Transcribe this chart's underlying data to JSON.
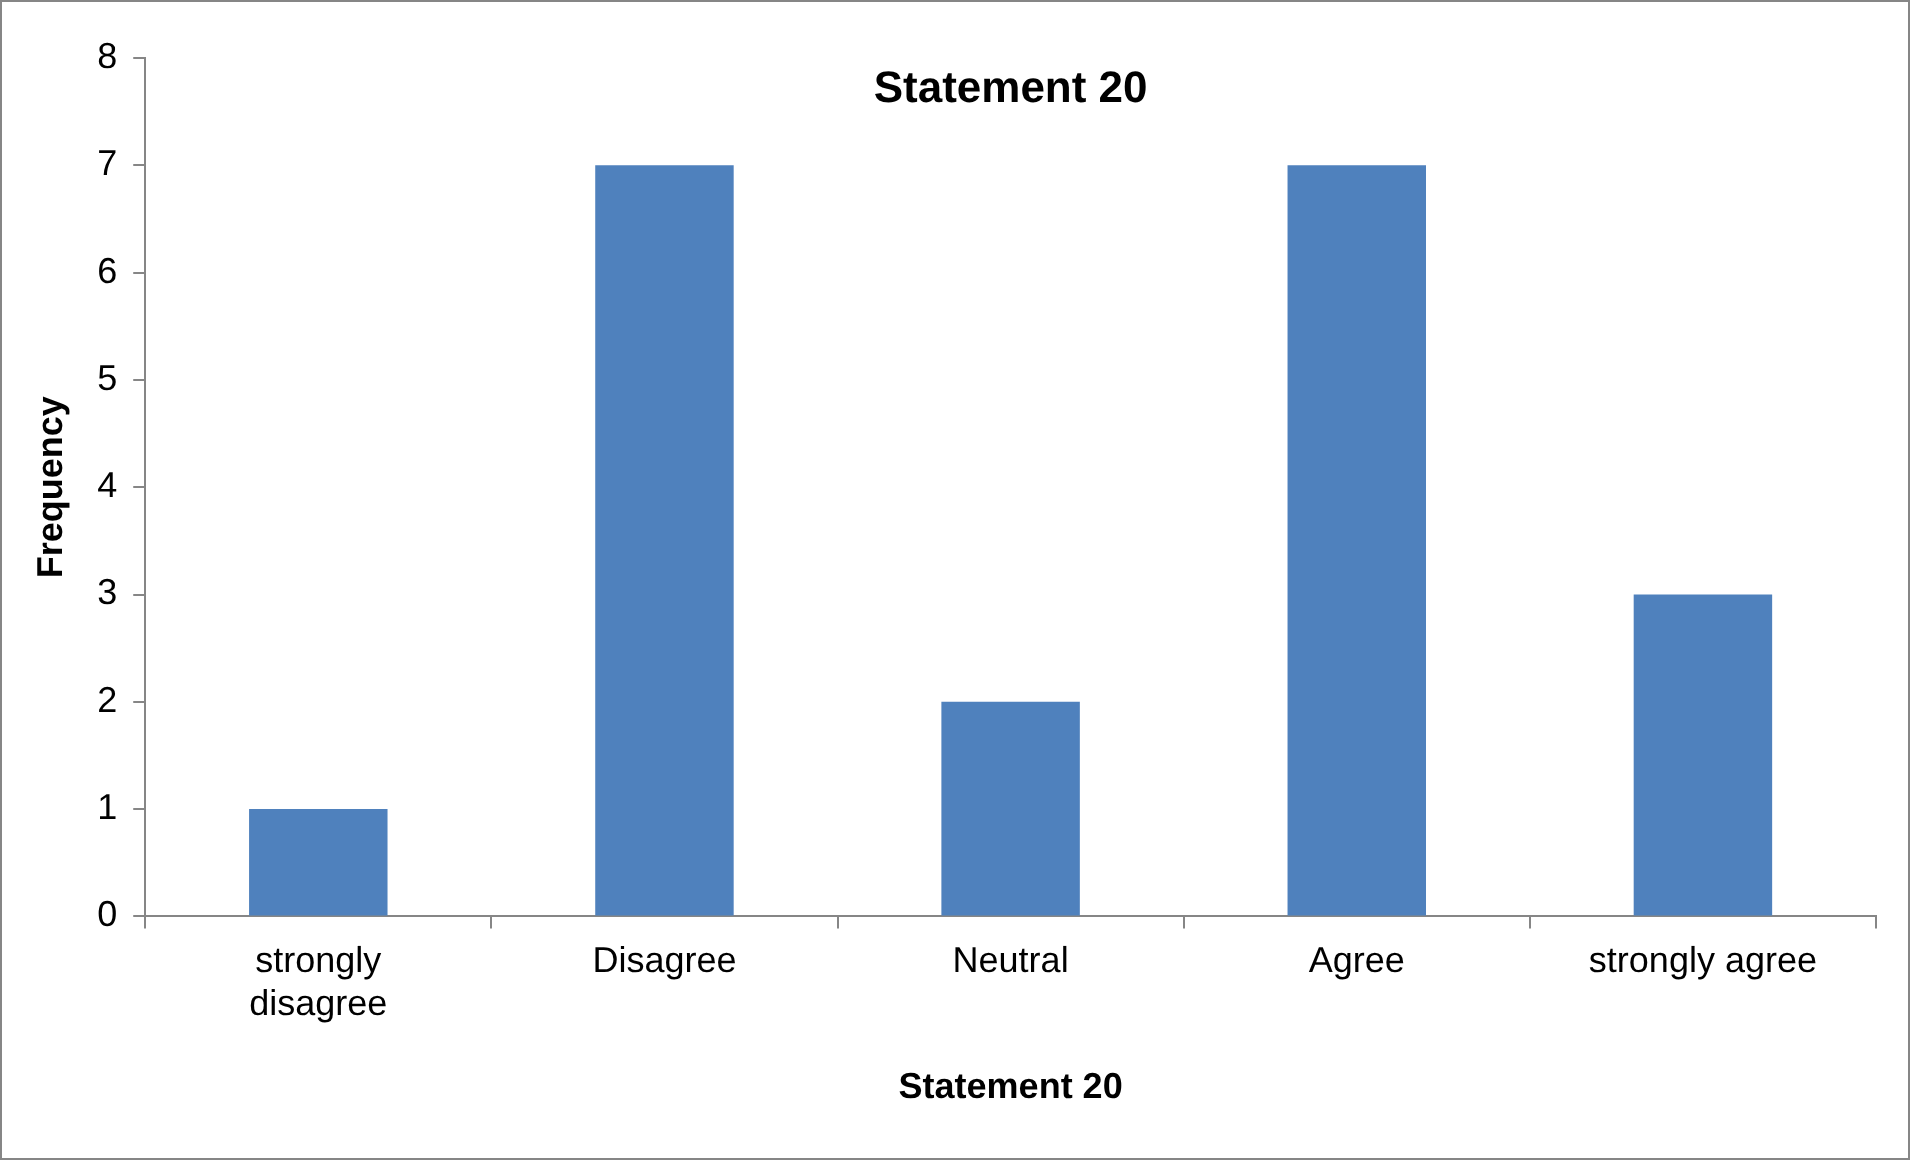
{
  "chart_data": {
    "type": "bar",
    "title": "Statement 20",
    "xlabel": "Statement 20",
    "ylabel": "Frequency",
    "categories": [
      "strongly disagree",
      "Disagree",
      "Neutral",
      "Agree",
      "strongly agree"
    ],
    "values": [
      1,
      7,
      2,
      7,
      3
    ],
    "color": "#4f81bd",
    "ylim": [
      0,
      8
    ],
    "yticks": [
      0,
      1,
      2,
      3,
      4,
      5,
      6,
      7,
      8
    ],
    "grid": false,
    "legend": false
  }
}
